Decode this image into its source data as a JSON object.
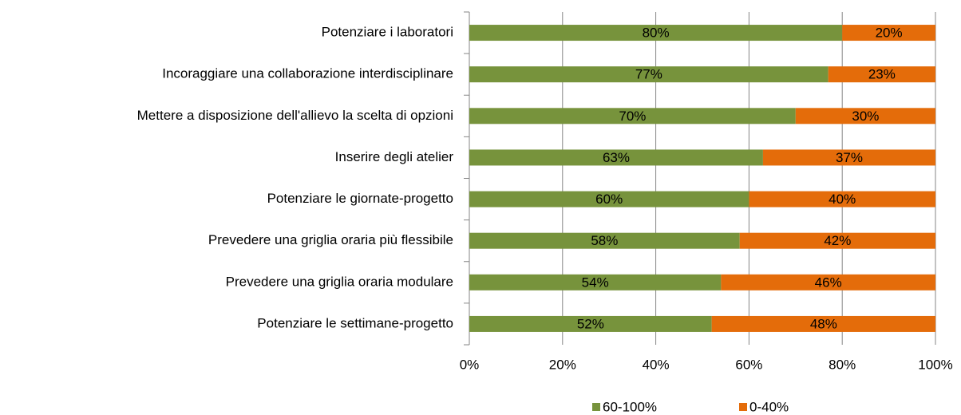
{
  "chart_data": {
    "type": "stacked-barh",
    "categories": [
      "Potenziare i laboratori",
      "Incoraggiare una collaborazione interdisciplinare",
      "Mettere a disposizione dell'allievo la scelta di opzioni",
      "Inserire degli atelier",
      "Potenziare le giornate-progetto",
      "Prevedere una griglia oraria più flessibile",
      "Prevedere una griglia oraria modulare",
      "Potenziare le settimane-progetto"
    ],
    "series": [
      {
        "name": "60-100%",
        "color": "#77933c",
        "values": [
          80,
          77,
          70,
          63,
          60,
          58,
          54,
          52
        ],
        "value_labels": [
          "80%",
          "77%",
          "70%",
          "63%",
          "60%",
          "58%",
          "54%",
          "52%"
        ]
      },
      {
        "name": "0-40%",
        "color": "#e46c0a",
        "values": [
          20,
          23,
          30,
          37,
          40,
          42,
          46,
          48
        ],
        "value_labels": [
          "20%",
          "23%",
          "30%",
          "37%",
          "40%",
          "42%",
          "46%",
          "48%"
        ]
      }
    ],
    "xlim": [
      0,
      100
    ],
    "xticks": [
      {
        "value": 0,
        "label": "0%"
      },
      {
        "value": 20,
        "label": "20%"
      },
      {
        "value": 40,
        "label": "40%"
      },
      {
        "value": 60,
        "label": "60%"
      },
      {
        "value": 80,
        "label": "80%"
      },
      {
        "value": 100,
        "label": "100%"
      }
    ],
    "grid": true,
    "legend": "bottom"
  }
}
